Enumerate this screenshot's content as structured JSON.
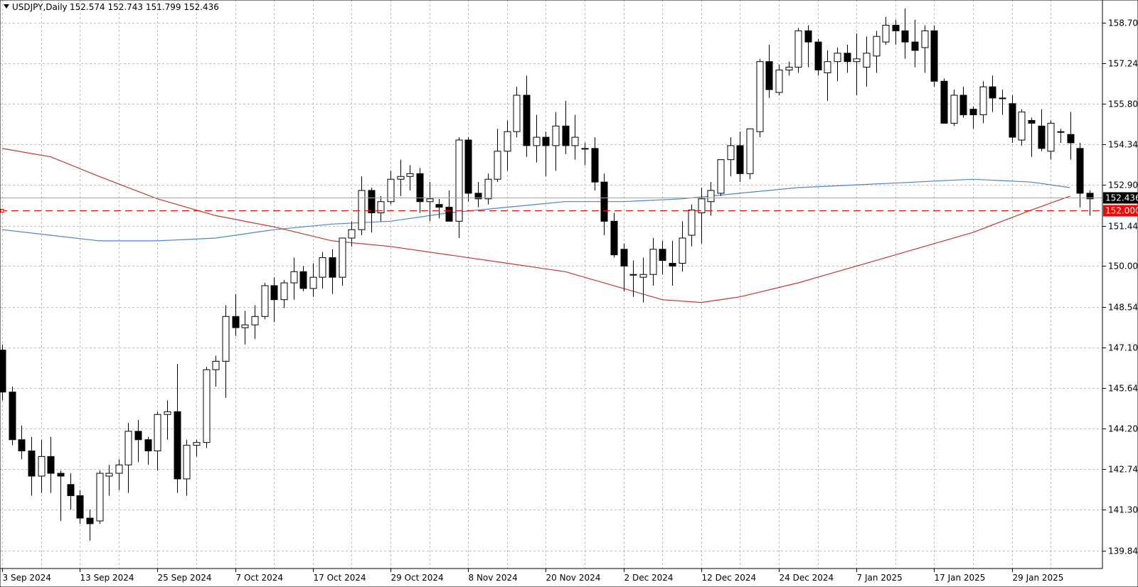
{
  "header": {
    "symbol": "USDJPY,Daily",
    "ohlc": "152.574 152.743 151.799 152.436"
  },
  "colors": {
    "background": "#ffffff",
    "grid": "#c0c0c0",
    "candle": "#000000",
    "ma_fast": "#4a86c8",
    "ma_slow": "#c0392b",
    "alert": "#ff0000",
    "bid_line": "#a0a0a0"
  },
  "chart_data": {
    "type": "candlestick",
    "ylim": [
      139.2,
      159.5
    ],
    "grid": true,
    "y_ticks": [
      "158.700",
      "157.240",
      "155.800",
      "154.340",
      "152.900",
      "151.440",
      "150.000",
      "148.540",
      "147.100",
      "145.640",
      "144.200",
      "142.740",
      "141.300",
      "139.840"
    ],
    "x_ticks": [
      {
        "label": "3 Sep 2024",
        "index": 0
      },
      {
        "label": "13 Sep 2024",
        "index": 8
      },
      {
        "label": "25 Sep 2024",
        "index": 16
      },
      {
        "label": "7 Oct 2024",
        "index": 24
      },
      {
        "label": "17 Oct 2024",
        "index": 32
      },
      {
        "label": "29 Oct 2024",
        "index": 40
      },
      {
        "label": "8 Nov 2024",
        "index": 48
      },
      {
        "label": "20 Nov 2024",
        "index": 56
      },
      {
        "label": "2 Dec 2024",
        "index": 64
      },
      {
        "label": "12 Dec 2024",
        "index": 72
      },
      {
        "label": "24 Dec 2024",
        "index": 80
      },
      {
        "label": "7 Jan 2025",
        "index": 88
      },
      {
        "label": "17 Jan 2025",
        "index": 96
      },
      {
        "label": "29 Jan 2025",
        "index": 104
      }
    ],
    "ohlc": [
      [
        147.0,
        147.2,
        145.2,
        145.5
      ],
      [
        145.5,
        145.7,
        143.6,
        143.8
      ],
      [
        143.8,
        144.3,
        143.1,
        143.4
      ],
      [
        143.4,
        143.9,
        141.8,
        142.5
      ],
      [
        142.5,
        143.8,
        141.9,
        143.2
      ],
      [
        143.2,
        143.9,
        141.9,
        142.6
      ],
      [
        142.6,
        142.7,
        140.9,
        142.5
      ],
      [
        142.2,
        142.6,
        141.3,
        141.8
      ],
      [
        141.8,
        142.0,
        140.8,
        141.0
      ],
      [
        141.0,
        141.3,
        140.2,
        140.8
      ],
      [
        140.9,
        142.7,
        140.8,
        142.6
      ],
      [
        142.5,
        142.9,
        141.8,
        142.6
      ],
      [
        142.6,
        143.1,
        142.0,
        142.9
      ],
      [
        142.9,
        144.4,
        141.9,
        144.1
      ],
      [
        144.1,
        144.5,
        143.0,
        143.8
      ],
      [
        143.8,
        143.9,
        142.9,
        143.4
      ],
      [
        143.4,
        144.8,
        142.7,
        144.7
      ],
      [
        144.7,
        145.2,
        143.8,
        144.8
      ],
      [
        144.8,
        146.5,
        141.9,
        142.4
      ],
      [
        142.4,
        143.8,
        141.8,
        143.6
      ],
      [
        143.6,
        143.8,
        143.2,
        143.7
      ],
      [
        143.7,
        146.4,
        143.5,
        146.3
      ],
      [
        146.3,
        146.8,
        145.7,
        146.6
      ],
      [
        146.6,
        148.6,
        145.3,
        148.2
      ],
      [
        148.2,
        149.0,
        147.5,
        147.8
      ],
      [
        147.8,
        148.4,
        147.2,
        147.9
      ],
      [
        147.9,
        148.6,
        147.4,
        148.2
      ],
      [
        148.2,
        149.4,
        148.1,
        149.3
      ],
      [
        149.3,
        149.6,
        148.0,
        148.8
      ],
      [
        148.8,
        149.5,
        148.5,
        149.4
      ],
      [
        149.4,
        150.3,
        148.8,
        149.8
      ],
      [
        149.8,
        150.0,
        149.1,
        149.2
      ],
      [
        149.2,
        150.1,
        148.9,
        149.6
      ],
      [
        149.6,
        150.5,
        149.2,
        150.3
      ],
      [
        150.3,
        150.6,
        149.0,
        149.6
      ],
      [
        149.6,
        151.0,
        149.3,
        151.0
      ],
      [
        151.0,
        151.6,
        150.7,
        151.3
      ],
      [
        151.3,
        153.2,
        151.1,
        152.7
      ],
      [
        152.7,
        152.8,
        151.2,
        151.9
      ],
      [
        151.9,
        152.5,
        151.6,
        152.3
      ],
      [
        152.3,
        153.4,
        152.2,
        153.1
      ],
      [
        153.1,
        153.8,
        152.5,
        153.2
      ],
      [
        153.2,
        153.6,
        152.7,
        153.3
      ],
      [
        153.3,
        153.5,
        151.9,
        152.3
      ],
      [
        152.3,
        153.0,
        151.6,
        152.4
      ],
      [
        152.2,
        152.4,
        151.7,
        152.1
      ],
      [
        152.1,
        152.7,
        151.7,
        151.6
      ],
      [
        151.6,
        154.6,
        151.0,
        154.5
      ],
      [
        154.5,
        154.6,
        152.3,
        152.6
      ],
      [
        152.6,
        153.0,
        152.1,
        152.4
      ],
      [
        152.4,
        153.3,
        152.2,
        153.1
      ],
      [
        153.1,
        154.9,
        153.0,
        154.1
      ],
      [
        154.1,
        155.2,
        153.4,
        154.8
      ],
      [
        154.8,
        156.4,
        154.6,
        156.1
      ],
      [
        156.1,
        156.8,
        153.9,
        154.3
      ],
      [
        154.3,
        155.4,
        153.7,
        154.6
      ],
      [
        154.6,
        154.8,
        153.2,
        154.3
      ],
      [
        154.3,
        155.5,
        153.4,
        155.0
      ],
      [
        155.0,
        155.9,
        154.0,
        154.3
      ],
      [
        154.3,
        155.4,
        153.8,
        154.6
      ],
      [
        154.2,
        154.4,
        153.6,
        154.2
      ],
      [
        154.2,
        154.6,
        152.7,
        153.0
      ],
      [
        153.0,
        153.3,
        151.1,
        151.6
      ],
      [
        151.6,
        151.9,
        150.3,
        150.4
      ],
      [
        150.6,
        150.8,
        149.1,
        150.0
      ],
      [
        149.7,
        150.2,
        148.9,
        149.7
      ],
      [
        149.6,
        150.3,
        148.7,
        149.7
      ],
      [
        149.7,
        151.0,
        149.3,
        150.6
      ],
      [
        150.6,
        150.9,
        149.7,
        150.2
      ],
      [
        150.1,
        150.9,
        149.3,
        150.0
      ],
      [
        150.1,
        151.6,
        149.8,
        151.0
      ],
      [
        151.1,
        152.2,
        150.7,
        152.0
      ],
      [
        151.9,
        152.8,
        150.8,
        152.4
      ],
      [
        152.3,
        153.0,
        151.8,
        152.7
      ],
      [
        152.6,
        153.8,
        152.5,
        153.8
      ],
      [
        153.8,
        154.6,
        153.2,
        154.3
      ],
      [
        154.3,
        154.8,
        153.0,
        153.3
      ],
      [
        153.3,
        154.9,
        153.1,
        154.9
      ],
      [
        154.8,
        157.4,
        154.6,
        157.3
      ],
      [
        157.3,
        157.9,
        156.0,
        156.3
      ],
      [
        156.2,
        157.2,
        156.1,
        157.0
      ],
      [
        157.0,
        157.3,
        156.8,
        157.1
      ],
      [
        157.1,
        158.5,
        156.9,
        158.4
      ],
      [
        158.4,
        158.6,
        157.1,
        158.0
      ],
      [
        158.0,
        158.1,
        156.8,
        157.0
      ],
      [
        156.9,
        157.7,
        155.9,
        157.3
      ],
      [
        157.3,
        157.8,
        156.6,
        157.6
      ],
      [
        157.6,
        157.9,
        156.9,
        157.3
      ],
      [
        157.3,
        158.3,
        156.1,
        157.4
      ],
      [
        157.1,
        158.2,
        156.4,
        157.6
      ],
      [
        157.5,
        158.4,
        156.9,
        158.2
      ],
      [
        158.0,
        158.9,
        157.9,
        158.6
      ],
      [
        158.6,
        158.8,
        157.9,
        158.4
      ],
      [
        158.4,
        159.2,
        157.4,
        158.0
      ],
      [
        158.0,
        158.8,
        157.1,
        157.7
      ],
      [
        157.8,
        158.6,
        156.9,
        158.4
      ],
      [
        158.4,
        158.6,
        156.4,
        156.6
      ],
      [
        156.6,
        156.7,
        155.1,
        155.1
      ],
      [
        155.1,
        156.3,
        155.0,
        156.1
      ],
      [
        156.1,
        156.4,
        155.3,
        155.4
      ],
      [
        155.6,
        155.7,
        154.9,
        155.4
      ],
      [
        155.4,
        156.6,
        155.1,
        156.4
      ],
      [
        156.4,
        156.8,
        155.5,
        156.0
      ],
      [
        156.0,
        156.3,
        155.4,
        156.0
      ],
      [
        155.8,
        156.1,
        154.4,
        154.6
      ],
      [
        154.5,
        155.6,
        154.3,
        155.5
      ],
      [
        155.2,
        155.3,
        153.9,
        155.1
      ],
      [
        155.0,
        155.6,
        154.1,
        154.2
      ],
      [
        154.1,
        155.2,
        153.8,
        155.1
      ],
      [
        154.8,
        154.9,
        154.4,
        154.8
      ],
      [
        154.7,
        155.5,
        153.8,
        154.4
      ],
      [
        154.2,
        154.4,
        152.1,
        152.6
      ],
      [
        152.6,
        152.7,
        151.8,
        152.4
      ]
    ],
    "ma_fast": [
      [
        0,
        151.3
      ],
      [
        5,
        151.1
      ],
      [
        10,
        150.9
      ],
      [
        16,
        150.9
      ],
      [
        22,
        151.0
      ],
      [
        28,
        151.3
      ],
      [
        34,
        151.5
      ],
      [
        40,
        151.6
      ],
      [
        46,
        151.9
      ],
      [
        52,
        152.1
      ],
      [
        58,
        152.3
      ],
      [
        64,
        152.3
      ],
      [
        70,
        152.4
      ],
      [
        76,
        152.6
      ],
      [
        82,
        152.8
      ],
      [
        88,
        152.9
      ],
      [
        94,
        153.0
      ],
      [
        100,
        153.1
      ],
      [
        106,
        153.0
      ],
      [
        110,
        152.8
      ]
    ],
    "ma_slow": [
      [
        0,
        154.2
      ],
      [
        5,
        153.9
      ],
      [
        10,
        153.2
      ],
      [
        16,
        152.4
      ],
      [
        22,
        151.8
      ],
      [
        28,
        151.4
      ],
      [
        34,
        150.9
      ],
      [
        40,
        150.7
      ],
      [
        46,
        150.4
      ],
      [
        52,
        150.1
      ],
      [
        58,
        149.8
      ],
      [
        64,
        149.2
      ],
      [
        68,
        148.8
      ],
      [
        72,
        148.7
      ],
      [
        76,
        148.9
      ],
      [
        82,
        149.4
      ],
      [
        88,
        150.0
      ],
      [
        94,
        150.6
      ],
      [
        100,
        151.2
      ],
      [
        106,
        152.0
      ],
      [
        110,
        152.5
      ]
    ],
    "bid": 152.436,
    "alert": 152.0,
    "price_tags": {
      "bid": "152.436",
      "alert": "152.000"
    }
  }
}
